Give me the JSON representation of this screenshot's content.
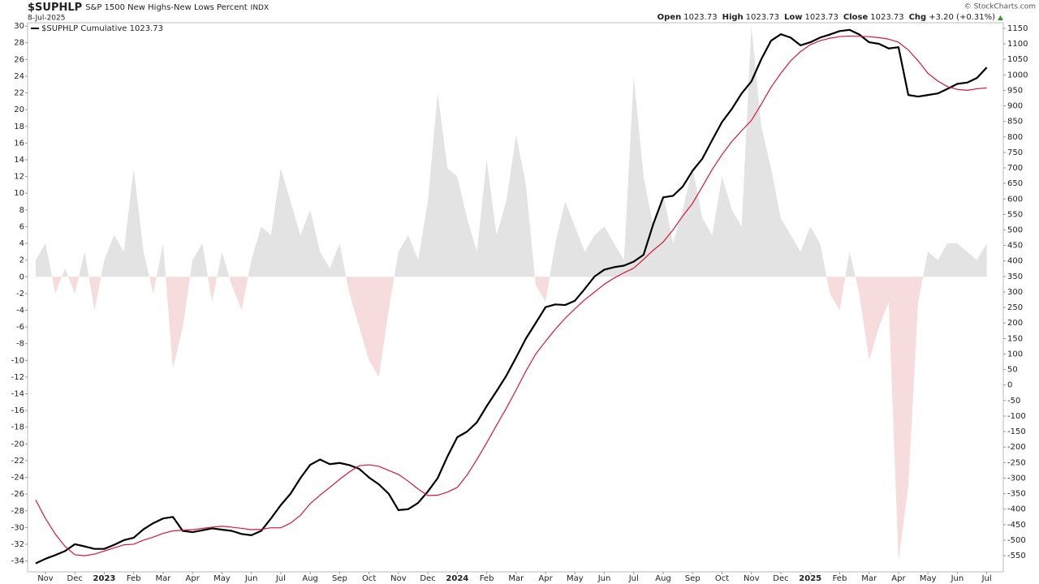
{
  "chart_data": {
    "type": "line",
    "symbol": "$SUPHLP",
    "title": "S&P 1500 New Highs-New Lows Percent",
    "exchange": "INDX",
    "date": "8-Jul-2025",
    "copyright": "© StockCharts.com",
    "quote": [
      {
        "label": "Open",
        "value": "1023.73"
      },
      {
        "label": "High",
        "value": "1023.73"
      },
      {
        "label": "Low",
        "value": "1023.73"
      },
      {
        "label": "Close",
        "value": "1023.73"
      },
      {
        "label": "Chg",
        "value": "+3.20 (+0.31%)"
      }
    ],
    "categories": [
      null,
      "Nov",
      null,
      null,
      "Dec",
      null,
      null,
      "2023",
      null,
      null,
      "Feb",
      null,
      null,
      "Mar",
      null,
      null,
      "Apr",
      null,
      null,
      "May",
      null,
      null,
      "Jun",
      null,
      null,
      "Jul",
      null,
      null,
      "Aug",
      null,
      null,
      "Sep",
      null,
      null,
      "Oct",
      null,
      null,
      "Nov",
      null,
      null,
      "Dec",
      null,
      null,
      "2024",
      null,
      null,
      "Feb",
      null,
      null,
      "Mar",
      null,
      null,
      "Apr",
      null,
      null,
      "May",
      null,
      null,
      "Jun",
      null,
      null,
      "Jul",
      null,
      null,
      "Aug",
      null,
      null,
      "Sep",
      null,
      null,
      "Oct",
      null,
      null,
      "Nov",
      null,
      null,
      "Dec",
      null,
      null,
      "2025",
      null,
      null,
      "Feb",
      null,
      null,
      "Mar",
      null,
      null,
      "Apr",
      null,
      null,
      "May",
      null,
      null,
      "Jun",
      null,
      null,
      "Jul"
    ],
    "series": [
      {
        "type": "area",
        "color": "#e3e3e3",
        "negative_color": "#f6dcdc",
        "axis": "y",
        "values": [
          2,
          4,
          -2,
          1,
          -2,
          3,
          -4,
          2,
          5,
          3,
          13,
          3,
          -2,
          4,
          -11,
          -6,
          2,
          4,
          -3,
          3,
          -1,
          -4,
          2,
          6,
          5,
          13,
          9,
          5,
          8,
          3,
          1,
          4,
          -2,
          -6,
          -10,
          -12,
          -4,
          3,
          5,
          2,
          9,
          22,
          13,
          12,
          7,
          3,
          14,
          5,
          9,
          17,
          11,
          -1,
          -3,
          4,
          9,
          6,
          3,
          5,
          6,
          4,
          2,
          24,
          12,
          6,
          10,
          4,
          8,
          13,
          7,
          5,
          12,
          8,
          6,
          30,
          18,
          13,
          7,
          5,
          3,
          6,
          4,
          -2,
          -4,
          3,
          -2,
          -10,
          -6,
          -3,
          -34,
          -25,
          -3,
          3,
          2,
          4,
          4,
          3,
          2,
          4
        ]
      },
      {
        "type": "line",
        "name": "$SUPHLP Cumulative 1023.73",
        "color": "#000000",
        "axis": "y2",
        "values": [
          -575,
          -560,
          -548,
          -535,
          -513,
          -520,
          -528,
          -528,
          -515,
          -500,
          -492,
          -465,
          -445,
          -430,
          -425,
          -470,
          -474,
          -468,
          -462,
          -466,
          -470,
          -480,
          -484,
          -470,
          -430,
          -387,
          -350,
          -300,
          -257,
          -240,
          -255,
          -251,
          -258,
          -270,
          -298,
          -320,
          -350,
          -403,
          -400,
          -380,
          -343,
          -300,
          -230,
          -168,
          -150,
          -120,
          -68,
          -20,
          30,
          89,
          150,
          200,
          251,
          260,
          258,
          272,
          310,
          350,
          372,
          380,
          385,
          398,
          420,
          520,
          605,
          610,
          640,
          691,
          730,
          790,
          848,
          890,
          940,
          979,
          1050,
          1110,
          1131,
          1120,
          1095,
          1105,
          1120,
          1130,
          1141,
          1145,
          1130,
          1105,
          1100,
          1085,
          1089,
          935,
          930,
          935,
          940,
          955,
          971,
          975,
          990,
          1023.73
        ]
      },
      {
        "type": "line",
        "color": "#d6173b",
        "axis": "y2",
        "values": [
          -370,
          -430,
          -480,
          -520,
          -547,
          -550,
          -545,
          -535,
          -525,
          -515,
          -513,
          -500,
          -490,
          -478,
          -470,
          -468,
          -466,
          -462,
          -458,
          -455,
          -458,
          -462,
          -466,
          -465,
          -460,
          -460,
          -445,
          -420,
          -382,
          -355,
          -330,
          -304,
          -280,
          -260,
          -257,
          -262,
          -275,
          -288,
          -310,
          -335,
          -356,
          -355,
          -345,
          -330,
          -290,
          -240,
          -186,
          -130,
          -75,
          -16,
          45,
          100,
          141,
          180,
          215,
          246,
          275,
          300,
          325,
          345,
          362,
          377,
          405,
          435,
          461,
          500,
          545,
          586,
          640,
          695,
          743,
          785,
          820,
          853,
          905,
          960,
          1005,
          1045,
          1075,
          1097,
          1110,
          1118,
          1123,
          1125,
          1124,
          1123,
          1120,
          1115,
          1105,
          1080,
          1045,
          1005,
          980,
          962,
          953,
          950,
          955,
          958
        ]
      }
    ],
    "ylim": [
      -35.3,
      30.4
    ],
    "yticks": [
      30,
      28,
      26,
      24,
      22,
      20,
      18,
      16,
      14,
      12,
      10,
      8,
      6,
      4,
      2,
      0,
      -2,
      -4,
      -6,
      -8,
      -10,
      -12,
      -14,
      -16,
      -18,
      -20,
      -22,
      -24,
      -26,
      -28,
      -30,
      -32,
      -34
    ],
    "y2lim": [
      -602,
      1168
    ],
    "y2ticks": [
      1150,
      1100,
      1050,
      1000,
      950,
      900,
      850,
      800,
      750,
      700,
      650,
      600,
      550,
      500,
      450,
      400,
      350,
      300,
      250,
      200,
      150,
      100,
      50,
      0,
      -50,
      -100,
      -150,
      -200,
      -250,
      -300,
      -350,
      -400,
      -450,
      -500,
      -550
    ],
    "legend": "top-left"
  }
}
